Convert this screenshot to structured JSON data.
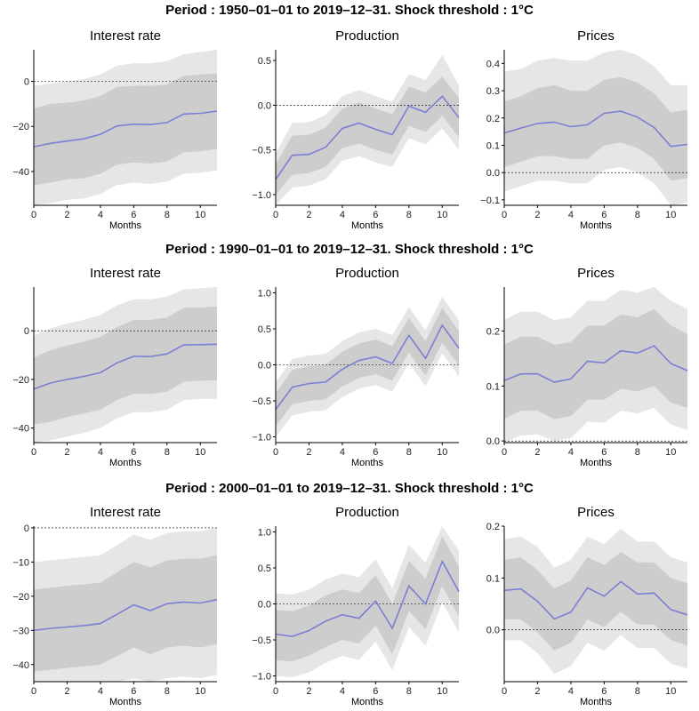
{
  "colors": {
    "line": "#7b7fd4",
    "band_outer": "#e6e6e6",
    "band_inner": "#cdcdcd",
    "zero_line": "#000000"
  },
  "chart_data": [
    {
      "type": "line",
      "period_title": "Period : 1950–01–01 to 2019–12–31. Shock threshold : 1°C",
      "panel_title": "Interest rate",
      "xlabel": "Months",
      "x": [
        0,
        1,
        2,
        3,
        4,
        5,
        6,
        7,
        8,
        9,
        10,
        11
      ],
      "xlim": [
        0,
        11
      ],
      "xticks": [
        0,
        2,
        4,
        6,
        8,
        10
      ],
      "ylim": [
        -55,
        14
      ],
      "yticks": [
        0,
        -20,
        -40
      ],
      "ytick_labels": [
        "0",
        "−20",
        "−40"
      ],
      "series": [
        {
          "values": [
            -29,
            -27.5,
            -26.5,
            -25.5,
            -23.5,
            -19.8,
            -19,
            -19.2,
            -18.3,
            -14.5,
            -14.2,
            -13.2
          ]
        }
      ],
      "band_inner": {
        "lower": [
          -46,
          -45,
          -43.5,
          -43,
          -41,
          -37,
          -36,
          -36.5,
          -35.5,
          -31.5,
          -31,
          -30
        ],
        "upper": [
          -12,
          -10,
          -9.5,
          -8.5,
          -6.5,
          -2.5,
          -2,
          -2,
          -1.5,
          2.5,
          3,
          3.5
        ]
      },
      "band_outer": {
        "lower": [
          -55,
          -54,
          -52.5,
          -52,
          -50,
          -46,
          -45,
          -45.5,
          -44.5,
          -41,
          -40.5,
          -39.5
        ],
        "upper": [
          -2,
          -1,
          0,
          1,
          3,
          7,
          8,
          8,
          9,
          12,
          13,
          14
        ]
      }
    },
    {
      "type": "line",
      "panel_title": "Production",
      "xlabel": "Months",
      "x": [
        0,
        1,
        2,
        3,
        4,
        5,
        6,
        7,
        8,
        9,
        10,
        11
      ],
      "xlim": [
        0,
        11
      ],
      "xticks": [
        0,
        2,
        4,
        6,
        8,
        10
      ],
      "ylim": [
        -1.12,
        0.62
      ],
      "yticks": [
        0.5,
        0.0,
        -0.5,
        -1.0
      ],
      "ytick_labels": [
        "0.5",
        "0.0",
        "−0.5",
        "−1.0"
      ],
      "series": [
        {
          "values": [
            -0.83,
            -0.56,
            -0.55,
            -0.47,
            -0.26,
            -0.2,
            -0.27,
            -0.33,
            -0.01,
            -0.08,
            0.1,
            -0.14
          ]
        }
      ],
      "band_inner": {
        "lower": [
          -1.0,
          -0.78,
          -0.76,
          -0.69,
          -0.48,
          -0.43,
          -0.5,
          -0.55,
          -0.23,
          -0.3,
          -0.12,
          -0.36
        ],
        "upper": [
          -0.66,
          -0.34,
          -0.33,
          -0.25,
          -0.04,
          0.03,
          -0.04,
          -0.1,
          0.21,
          0.14,
          0.32,
          0.08
        ]
      },
      "band_outer": {
        "lower": [
          -1.12,
          -0.92,
          -0.9,
          -0.83,
          -0.62,
          -0.57,
          -0.64,
          -0.69,
          -0.37,
          -0.44,
          -0.26,
          -0.5
        ],
        "upper": [
          -0.54,
          -0.2,
          -0.19,
          -0.11,
          0.1,
          0.17,
          0.1,
          0.04,
          0.35,
          0.28,
          0.56,
          0.22
        ]
      }
    },
    {
      "type": "line",
      "panel_title": "Prices",
      "xlabel": "Months",
      "x": [
        0,
        1,
        2,
        3,
        4,
        5,
        6,
        7,
        8,
        9,
        10,
        11
      ],
      "xlim": [
        0,
        11
      ],
      "xticks": [
        0,
        2,
        4,
        6,
        8,
        10
      ],
      "ylim": [
        -0.12,
        0.45
      ],
      "yticks": [
        0.4,
        0.3,
        0.2,
        0.1,
        0.0,
        -0.1
      ],
      "ytick_labels": [
        "0.4",
        "0.3",
        "0.2",
        "0.1",
        "0.0",
        "−0.1"
      ],
      "series": [
        {
          "values": [
            0.145,
            0.163,
            0.18,
            0.185,
            0.168,
            0.175,
            0.217,
            0.225,
            0.203,
            0.165,
            0.096,
            0.103
          ]
        }
      ],
      "band_inner": {
        "lower": [
          0.02,
          0.04,
          0.06,
          0.06,
          0.05,
          0.05,
          0.1,
          0.11,
          0.09,
          0.05,
          -0.03,
          -0.02
        ],
        "upper": [
          0.26,
          0.28,
          0.31,
          0.32,
          0.3,
          0.3,
          0.34,
          0.35,
          0.33,
          0.29,
          0.22,
          0.23
        ]
      },
      "band_outer": {
        "lower": [
          -0.07,
          -0.05,
          -0.03,
          -0.03,
          -0.04,
          -0.04,
          0.01,
          0.02,
          0.0,
          -0.04,
          -0.12,
          -0.11
        ],
        "upper": [
          0.37,
          0.38,
          0.41,
          0.42,
          0.41,
          0.41,
          0.44,
          0.45,
          0.43,
          0.39,
          0.32,
          0.32
        ]
      }
    },
    {
      "type": "line",
      "period_title": "Period : 1990–01–01 to 2019–12–31. Shock threshold : 1°C",
      "panel_title": "Interest rate",
      "xlabel": "Months",
      "x": [
        0,
        1,
        2,
        3,
        4,
        5,
        6,
        7,
        8,
        9,
        10,
        11
      ],
      "xlim": [
        0,
        11
      ],
      "xticks": [
        0,
        2,
        4,
        6,
        8,
        10
      ],
      "ylim": [
        -46,
        18
      ],
      "yticks": [
        0,
        -20,
        -40
      ],
      "ytick_labels": [
        "0",
        "−20",
        "−40"
      ],
      "series": [
        {
          "values": [
            -24,
            -21.5,
            -20,
            -18.8,
            -17.2,
            -13.2,
            -10.5,
            -10.6,
            -9.5,
            -5.8,
            -5.7,
            -5.5
          ]
        }
      ],
      "band_inner": {
        "lower": [
          -38.5,
          -37.5,
          -35.5,
          -34,
          -32.5,
          -28.5,
          -26,
          -26,
          -25,
          -21,
          -20.5,
          -20.5
        ],
        "upper": [
          -11,
          -8,
          -6,
          -4.5,
          -2.5,
          1.5,
          4.5,
          4.5,
          5.5,
          9.5,
          9.5,
          10
        ]
      },
      "band_outer": {
        "lower": [
          -46,
          -45,
          -43.5,
          -42,
          -40,
          -36,
          -33.5,
          -33.5,
          -32.5,
          -28.5,
          -28,
          -28
        ],
        "upper": [
          -2,
          1,
          3,
          4.5,
          6.5,
          10.5,
          13,
          13,
          14,
          17,
          17.5,
          18
        ]
      }
    },
    {
      "type": "line",
      "panel_title": "Production",
      "xlabel": "Months",
      "x": [
        0,
        1,
        2,
        3,
        4,
        5,
        6,
        7,
        8,
        9,
        10,
        11
      ],
      "xlim": [
        0,
        11
      ],
      "xticks": [
        0,
        2,
        4,
        6,
        8,
        10
      ],
      "ylim": [
        -1.08,
        1.08
      ],
      "yticks": [
        1.0,
        0.5,
        0.0,
        -0.5,
        -1.0
      ],
      "ytick_labels": [
        "1.0",
        "0.5",
        "0.0",
        "−0.5",
        "−1.0"
      ],
      "series": [
        {
          "values": [
            -0.62,
            -0.31,
            -0.26,
            -0.24,
            -0.06,
            0.06,
            0.11,
            0.02,
            0.41,
            0.09,
            0.55,
            0.23
          ]
        }
      ],
      "band_inner": {
        "lower": [
          -0.85,
          -0.55,
          -0.5,
          -0.48,
          -0.3,
          -0.18,
          -0.13,
          -0.22,
          0.17,
          -0.15,
          0.31,
          -0.01
        ],
        "upper": [
          -0.39,
          -0.07,
          -0.02,
          0.0,
          0.18,
          0.3,
          0.35,
          0.26,
          0.65,
          0.33,
          0.79,
          0.47
        ]
      },
      "band_outer": {
        "lower": [
          -1.0,
          -0.7,
          -0.65,
          -0.63,
          -0.45,
          -0.33,
          -0.28,
          -0.37,
          0.02,
          -0.3,
          0.16,
          -0.16
        ],
        "upper": [
          -0.24,
          0.08,
          0.13,
          0.15,
          0.33,
          0.45,
          0.5,
          0.41,
          0.8,
          0.48,
          0.94,
          0.62
        ]
      }
    },
    {
      "type": "line",
      "panel_title": "Prices",
      "xlabel": "Months",
      "x": [
        0,
        1,
        2,
        3,
        4,
        5,
        6,
        7,
        8,
        9,
        10,
        11
      ],
      "xlim": [
        0,
        11
      ],
      "xticks": [
        0,
        2,
        4,
        6,
        8,
        10
      ],
      "ylim": [
        -0.003,
        0.28
      ],
      "yticks": [
        0.2,
        0.1,
        0.0
      ],
      "ytick_labels": [
        "0.2",
        "0.1",
        "0.0"
      ],
      "series": [
        {
          "values": [
            0.11,
            0.122,
            0.122,
            0.107,
            0.113,
            0.145,
            0.142,
            0.164,
            0.16,
            0.173,
            0.141,
            0.128
          ]
        }
      ],
      "band_inner": {
        "lower": [
          0.04,
          0.055,
          0.055,
          0.04,
          0.045,
          0.075,
          0.075,
          0.095,
          0.09,
          0.1,
          0.07,
          0.06
        ],
        "upper": [
          0.175,
          0.19,
          0.19,
          0.175,
          0.18,
          0.21,
          0.21,
          0.23,
          0.225,
          0.24,
          0.21,
          0.195
        ]
      },
      "band_outer": {
        "lower": [
          -0.003,
          0.01,
          0.012,
          0.0,
          0.005,
          0.035,
          0.033,
          0.055,
          0.05,
          0.06,
          0.03,
          0.02
        ],
        "upper": [
          0.22,
          0.235,
          0.235,
          0.22,
          0.225,
          0.255,
          0.255,
          0.275,
          0.27,
          0.28,
          0.255,
          0.24
        ]
      }
    },
    {
      "type": "line",
      "period_title": "Period : 2000–01–01 to 2019–12–31. Shock threshold : 1°C",
      "panel_title": "Interest rate",
      "xlabel": "Months",
      "x": [
        0,
        1,
        2,
        3,
        4,
        5,
        6,
        7,
        8,
        9,
        10,
        11
      ],
      "xlim": [
        0,
        11
      ],
      "xticks": [
        0,
        2,
        4,
        6,
        8,
        10
      ],
      "ylim": [
        -45,
        0.5
      ],
      "yticks": [
        0,
        -10,
        -20,
        -30,
        -40
      ],
      "ytick_labels": [
        "0",
        "−10",
        "−20",
        "−30",
        "−40"
      ],
      "series": [
        {
          "values": [
            -30,
            -29.4,
            -29,
            -28.6,
            -28,
            -25.3,
            -22.5,
            -24.2,
            -22.2,
            -21.7,
            -22,
            -21
          ]
        }
      ],
      "band_inner": {
        "lower": [
          -42,
          -41.5,
          -41,
          -40.5,
          -40,
          -37.5,
          -35,
          -37,
          -35,
          -34.5,
          -35,
          -34
        ],
        "upper": [
          -18,
          -17.5,
          -17,
          -16.5,
          -16,
          -13,
          -10,
          -11.5,
          -9.5,
          -9,
          -9,
          -8
        ]
      },
      "band_outer": {
        "lower": [
          -45,
          -45,
          -45,
          -45,
          -45,
          -45,
          -44,
          -45,
          -44,
          -43.5,
          -44,
          -43
        ],
        "upper": [
          -10,
          -9.5,
          -9,
          -8.5,
          -8,
          -5,
          -2,
          -3.5,
          -1.5,
          -1,
          -1,
          0
        ]
      }
    },
    {
      "type": "line",
      "panel_title": "Production",
      "xlabel": "Months",
      "x": [
        0,
        1,
        2,
        3,
        4,
        5,
        6,
        7,
        8,
        9,
        10,
        11
      ],
      "xlim": [
        0,
        11
      ],
      "xticks": [
        0,
        2,
        4,
        6,
        8,
        10
      ],
      "ylim": [
        -1.08,
        1.08
      ],
      "yticks": [
        1.0,
        0.5,
        0.0,
        -0.5,
        -1.0
      ],
      "ytick_labels": [
        "1.0",
        "0.5",
        "0.0",
        "−0.5",
        "−1.0"
      ],
      "series": [
        {
          "values": [
            -0.42,
            -0.45,
            -0.37,
            -0.24,
            -0.15,
            -0.2,
            0.04,
            -0.34,
            0.25,
            0.0,
            0.59,
            0.17
          ]
        }
      ],
      "band_inner": {
        "lower": [
          -0.78,
          -0.8,
          -0.72,
          -0.6,
          -0.5,
          -0.55,
          -0.3,
          -0.7,
          -0.1,
          -0.35,
          0.25,
          -0.18
        ],
        "upper": [
          -0.08,
          -0.1,
          -0.02,
          0.12,
          0.2,
          0.15,
          0.4,
          0.0,
          0.6,
          0.35,
          0.94,
          0.52
        ]
      },
      "band_outer": {
        "lower": [
          -1.0,
          -1.02,
          -0.95,
          -0.82,
          -0.72,
          -0.78,
          -0.52,
          -0.92,
          -0.32,
          -0.58,
          0.02,
          -0.4
        ],
        "upper": [
          0.15,
          0.13,
          0.2,
          0.34,
          0.42,
          0.37,
          0.62,
          0.22,
          0.82,
          0.57,
          1.08,
          0.74
        ]
      }
    },
    {
      "type": "line",
      "panel_title": "Prices",
      "xlabel": "Months",
      "x": [
        0,
        1,
        2,
        3,
        4,
        5,
        6,
        7,
        8,
        9,
        10,
        11
      ],
      "xlim": [
        0,
        11
      ],
      "xticks": [
        0,
        2,
        4,
        6,
        8,
        10
      ],
      "ylim": [
        -0.1,
        0.2
      ],
      "yticks": [
        0.2,
        0.1,
        0.0
      ],
      "ytick_labels": [
        "0.2",
        "0.1",
        "0.0"
      ],
      "series": [
        {
          "values": [
            0.076,
            0.079,
            0.055,
            0.021,
            0.034,
            0.081,
            0.065,
            0.093,
            0.069,
            0.071,
            0.039,
            0.029
          ]
        }
      ],
      "band_inner": {
        "lower": [
          0.02,
          0.02,
          -0.005,
          -0.04,
          -0.025,
          0.02,
          0.005,
          0.035,
          0.01,
          0.01,
          -0.02,
          -0.03
        ],
        "upper": [
          0.135,
          0.14,
          0.115,
          0.08,
          0.095,
          0.14,
          0.125,
          0.15,
          0.13,
          0.13,
          0.1,
          0.09
        ]
      },
      "band_outer": {
        "lower": [
          -0.02,
          -0.02,
          -0.045,
          -0.085,
          -0.07,
          -0.025,
          -0.04,
          -0.01,
          -0.035,
          -0.035,
          -0.065,
          -0.075
        ],
        "upper": [
          0.175,
          0.18,
          0.16,
          0.12,
          0.135,
          0.18,
          0.165,
          0.195,
          0.17,
          0.17,
          0.14,
          0.13
        ]
      }
    }
  ]
}
